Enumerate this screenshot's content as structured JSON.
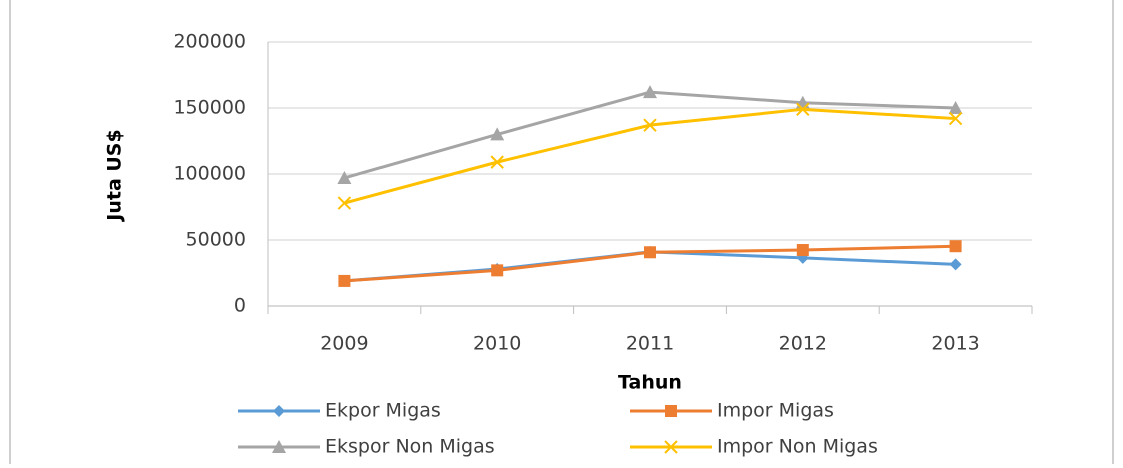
{
  "chart_data": {
    "type": "line",
    "x_label": "Tahun",
    "y_label": "Juta US$",
    "categories": [
      "2009",
      "2010",
      "2011",
      "2012",
      "2013"
    ],
    "series": [
      {
        "name": "Ekpor Migas",
        "color": "#5b9bd5",
        "marker": "diamond",
        "values": [
          19000,
          28000,
          41000,
          36500,
          31500
        ]
      },
      {
        "name": "Impor Migas",
        "color": "#ed7d31",
        "marker": "square",
        "values": [
          19000,
          27000,
          40700,
          42400,
          45300
        ]
      },
      {
        "name": "Ekspor Non Migas",
        "color": "#a5a5a5",
        "marker": "triangle",
        "values": [
          97000,
          130000,
          162000,
          154000,
          150000
        ]
      },
      {
        "name": "Impor Non Migas",
        "color": "#ffc000",
        "marker": "x",
        "values": [
          78000,
          109000,
          137000,
          149000,
          142000
        ]
      }
    ],
    "ylim": [
      0,
      200000
    ],
    "yticks": [
      0,
      50000,
      100000,
      150000,
      200000
    ],
    "grid": true
  }
}
